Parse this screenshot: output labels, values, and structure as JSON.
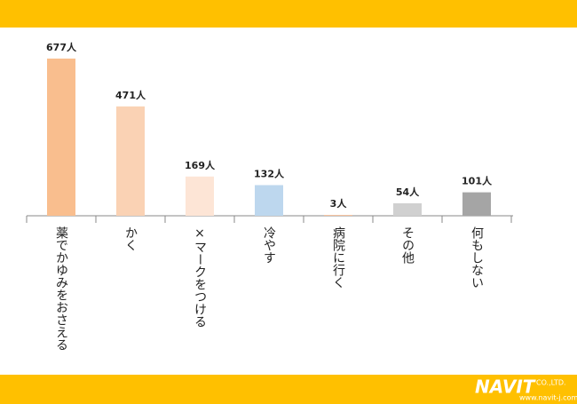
{
  "chart_data": {
    "type": "bar",
    "categories": [
      "薬でかゆみをおさえる",
      "かく",
      "×マークをつける",
      "冷やす",
      "病院に行く",
      "その他",
      "何もしない"
    ],
    "values": [
      677,
      471,
      169,
      132,
      3,
      54,
      101
    ],
    "value_labels": [
      "677人",
      "471人",
      "169人",
      "132人",
      "3人",
      "54人",
      "101人"
    ],
    "colors": [
      "#f9be8e",
      "#fad2b4",
      "#fde5d6",
      "#bdd7ee",
      "#f4b183",
      "#d0d0d0",
      "#a5a5a5"
    ]
  },
  "logo": {
    "name": "NAVIT",
    "suffix": "CO.,LTD.",
    "url": "www.navit-j.com"
  }
}
